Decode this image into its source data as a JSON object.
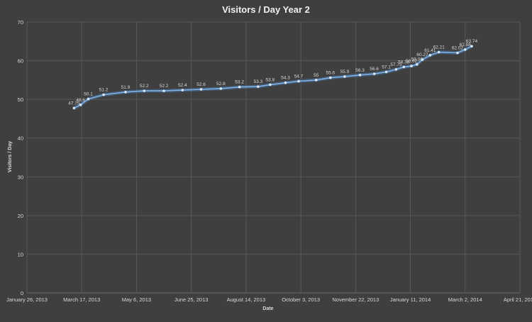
{
  "colors": {
    "background": "#3f3f3f",
    "gridline": "#575757",
    "series": "#7fb2e6",
    "text": "#d9d9d9",
    "title": "#f0f0f0"
  },
  "chart_data": {
    "type": "line",
    "title": "Visitors / Day Year 2",
    "xlabel": "Date",
    "ylabel": "Visitors / Day",
    "ylim": [
      0,
      70
    ],
    "y_ticks": [
      "0",
      "10",
      "20",
      "30",
      "40",
      "50",
      "60",
      "70"
    ],
    "xlim": [
      "2013-01-26",
      "2014-04-21"
    ],
    "x_ticks": [
      {
        "date": "2013-01-26",
        "label": "January 26, 2013"
      },
      {
        "date": "2013-03-17",
        "label": "March 17, 2013"
      },
      {
        "date": "2013-05-06",
        "label": "May 6, 2013"
      },
      {
        "date": "2013-06-25",
        "label": "June 25, 2013"
      },
      {
        "date": "2013-08-14",
        "label": "August 14, 2013"
      },
      {
        "date": "2013-10-03",
        "label": "October 3, 2013"
      },
      {
        "date": "2013-11-22",
        "label": "November 22, 2013"
      },
      {
        "date": "2014-01-11",
        "label": "January 11, 2014"
      },
      {
        "date": "2014-03-02",
        "label": "March 2, 2014"
      },
      {
        "date": "2014-04-21",
        "label": "April 21, 2014"
      }
    ],
    "grid": true,
    "legend": "none",
    "series": [
      {
        "points": [
          {
            "x": "2013-03-10",
            "y": 47.75,
            "label": "47.75"
          },
          {
            "x": "2013-03-16",
            "y": 48.6,
            "label": "48.6"
          },
          {
            "x": "2013-03-23",
            "y": 50.1,
            "label": "50.1"
          },
          {
            "x": "2013-04-06",
            "y": 51.2,
            "label": "51.2"
          },
          {
            "x": "2013-04-26",
            "y": 51.9,
            "label": "51.9"
          },
          {
            "x": "2013-05-13",
            "y": 52.2,
            "label": "52.2"
          },
          {
            "x": "2013-05-31",
            "y": 52.2,
            "label": "52.2"
          },
          {
            "x": "2013-06-17",
            "y": 52.4,
            "label": "52.4"
          },
          {
            "x": "2013-07-04",
            "y": 52.6,
            "label": "52.6"
          },
          {
            "x": "2013-07-22",
            "y": 52.8,
            "label": "52.8"
          },
          {
            "x": "2013-08-08",
            "y": 53.2,
            "label": "53.2"
          },
          {
            "x": "2013-08-25",
            "y": 53.3,
            "label": "53.3"
          },
          {
            "x": "2013-09-05",
            "y": 53.8,
            "label": "53.8"
          },
          {
            "x": "2013-09-19",
            "y": 54.3,
            "label": "54.3"
          },
          {
            "x": "2013-10-01",
            "y": 54.7,
            "label": "54.7"
          },
          {
            "x": "2013-10-17",
            "y": 55,
            "label": "55"
          },
          {
            "x": "2013-10-30",
            "y": 55.6,
            "label": "55.6"
          },
          {
            "x": "2013-11-12",
            "y": 55.9,
            "label": "55.9"
          },
          {
            "x": "2013-11-26",
            "y": 56.3,
            "label": "56.3"
          },
          {
            "x": "2013-12-09",
            "y": 56.6,
            "label": "56.6"
          },
          {
            "x": "2013-12-20",
            "y": 57.1,
            "label": "57.1"
          },
          {
            "x": "2013-12-29",
            "y": 57.75,
            "label": "57.75"
          },
          {
            "x": "2014-01-05",
            "y": 58.38,
            "label": "58.38"
          },
          {
            "x": "2014-01-12",
            "y": 58.62,
            "label": "58.62"
          },
          {
            "x": "2014-01-17",
            "y": 59.06,
            "label": "59.06"
          },
          {
            "x": "2014-01-22",
            "y": 60.27,
            "label": "60.27"
          },
          {
            "x": "2014-01-29",
            "y": 61.41,
            "label": "61.41"
          },
          {
            "x": "2014-02-06",
            "y": 62.21,
            "label": "62.21"
          },
          {
            "x": "2014-02-23",
            "y": 62.02,
            "label": "62.02"
          },
          {
            "x": "2014-03-02",
            "y": 62.88,
            "label": "62.88"
          },
          {
            "x": "2014-03-08",
            "y": 63.74,
            "label": "63.74"
          }
        ]
      }
    ]
  }
}
